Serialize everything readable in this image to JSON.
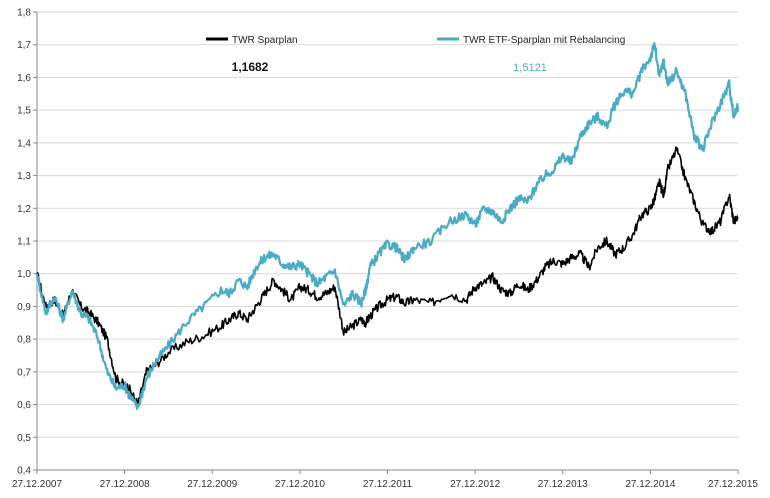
{
  "chart_data": {
    "type": "line",
    "title": "",
    "xlabel": "",
    "ylabel": "",
    "ylim": [
      0.4,
      1.8
    ],
    "yticks": [
      "0,4",
      "0,5",
      "0,6",
      "0,7",
      "0,8",
      "0,9",
      "1,0",
      "1,1",
      "1,2",
      "1,3",
      "1,4",
      "1,5",
      "1,6",
      "1,7",
      "1,8"
    ],
    "x_tick_labels": [
      "27.12.2007",
      "27.12.2008",
      "27.12.2009",
      "27.12.2010",
      "27.12.2011",
      "27.12.2012",
      "27.12.2013",
      "27.12.2014",
      "27.12.2015"
    ],
    "x_range": [
      0,
      8
    ],
    "grid": "horizontal",
    "legend_position": "top",
    "series": [
      {
        "name": "TWR Sparplan",
        "color": "#000000",
        "end_value_label": "1,1682",
        "x": [
          0,
          0.1,
          0.2,
          0.3,
          0.4,
          0.5,
          0.6,
          0.7,
          0.8,
          0.9,
          1.0,
          1.05,
          1.15,
          1.25,
          1.35,
          1.5,
          1.7,
          1.9,
          2.1,
          2.2,
          2.3,
          2.4,
          2.5,
          2.6,
          2.7,
          2.8,
          2.9,
          3.0,
          3.1,
          3.2,
          3.3,
          3.4,
          3.5,
          3.6,
          3.7,
          3.75,
          3.8,
          3.9,
          4.0,
          4.1,
          4.2,
          4.3,
          4.5,
          4.7,
          4.9,
          5.0,
          5.1,
          5.2,
          5.3,
          5.4,
          5.5,
          5.6,
          5.7,
          5.8,
          5.9,
          6.0,
          6.1,
          6.2,
          6.3,
          6.4,
          6.5,
          6.6,
          6.7,
          6.8,
          6.9,
          7.0,
          7.05,
          7.1,
          7.15,
          7.2,
          7.3,
          7.4,
          7.5,
          7.6,
          7.7,
          7.8,
          7.9,
          7.95,
          8.0
        ],
        "y": [
          1.0,
          0.9,
          0.92,
          0.87,
          0.95,
          0.9,
          0.88,
          0.85,
          0.8,
          0.68,
          0.66,
          0.65,
          0.6,
          0.7,
          0.72,
          0.76,
          0.79,
          0.81,
          0.84,
          0.86,
          0.88,
          0.86,
          0.9,
          0.94,
          0.98,
          0.95,
          0.92,
          0.96,
          0.95,
          0.93,
          0.94,
          0.96,
          0.82,
          0.84,
          0.86,
          0.85,
          0.87,
          0.9,
          0.92,
          0.93,
          0.91,
          0.92,
          0.91,
          0.94,
          0.92,
          0.96,
          0.97,
          0.99,
          0.95,
          0.94,
          0.97,
          0.95,
          0.98,
          1.02,
          1.04,
          1.03,
          1.05,
          1.06,
          1.02,
          1.08,
          1.1,
          1.06,
          1.08,
          1.12,
          1.18,
          1.2,
          1.23,
          1.28,
          1.24,
          1.32,
          1.38,
          1.29,
          1.22,
          1.15,
          1.13,
          1.16,
          1.24,
          1.16,
          1.17
        ]
      },
      {
        "name": "TWR ETF-Sparplan mit Rebalancing",
        "color": "#4aabc6",
        "end_value_label": "1,5121",
        "x": [
          0,
          0.1,
          0.2,
          0.3,
          0.4,
          0.5,
          0.6,
          0.7,
          0.8,
          0.9,
          1.0,
          1.05,
          1.15,
          1.25,
          1.35,
          1.5,
          1.7,
          1.9,
          2.1,
          2.2,
          2.3,
          2.4,
          2.5,
          2.6,
          2.7,
          2.8,
          2.9,
          3.0,
          3.1,
          3.2,
          3.3,
          3.4,
          3.5,
          3.6,
          3.7,
          3.75,
          3.8,
          3.9,
          4.0,
          4.1,
          4.2,
          4.3,
          4.5,
          4.7,
          4.9,
          5.0,
          5.1,
          5.2,
          5.3,
          5.4,
          5.5,
          5.6,
          5.7,
          5.8,
          5.9,
          6.0,
          6.1,
          6.2,
          6.3,
          6.4,
          6.5,
          6.6,
          6.7,
          6.8,
          6.9,
          7.0,
          7.05,
          7.1,
          7.15,
          7.2,
          7.3,
          7.4,
          7.5,
          7.6,
          7.7,
          7.8,
          7.9,
          7.95,
          8.0
        ],
        "y": [
          1.0,
          0.88,
          0.93,
          0.86,
          0.95,
          0.88,
          0.86,
          0.8,
          0.7,
          0.65,
          0.66,
          0.63,
          0.59,
          0.68,
          0.73,
          0.78,
          0.85,
          0.9,
          0.95,
          0.94,
          0.98,
          0.96,
          1.02,
          1.05,
          1.06,
          1.03,
          1.02,
          1.03,
          1.0,
          0.97,
          0.99,
          1.01,
          0.9,
          0.94,
          0.91,
          0.95,
          1.02,
          1.06,
          1.09,
          1.08,
          1.04,
          1.08,
          1.1,
          1.16,
          1.18,
          1.15,
          1.2,
          1.19,
          1.16,
          1.2,
          1.23,
          1.22,
          1.27,
          1.3,
          1.32,
          1.36,
          1.34,
          1.42,
          1.46,
          1.48,
          1.45,
          1.52,
          1.56,
          1.55,
          1.62,
          1.66,
          1.7,
          1.6,
          1.65,
          1.58,
          1.62,
          1.55,
          1.42,
          1.38,
          1.46,
          1.52,
          1.58,
          1.48,
          1.51
        ]
      }
    ]
  }
}
